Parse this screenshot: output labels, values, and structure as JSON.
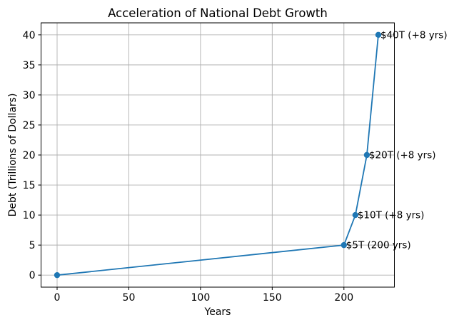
{
  "chart_data": {
    "type": "line",
    "title": "Acceleration of National Debt Growth",
    "xlabel": "Years",
    "ylabel": "Debt (Trillions of Dollars)",
    "x": [
      0,
      200,
      208,
      216,
      224
    ],
    "y": [
      0,
      5,
      10,
      20,
      40
    ],
    "annotations": [
      {
        "x": 200,
        "y": 5,
        "text": "$5T (200 yrs)"
      },
      {
        "x": 208,
        "y": 10,
        "text": "$10T (+8 yrs)"
      },
      {
        "x": 216,
        "y": 20,
        "text": "$20T (+8 yrs)"
      },
      {
        "x": 224,
        "y": 40,
        "text": "$40T (+8 yrs)"
      }
    ],
    "x_ticks": [
      0,
      50,
      100,
      150,
      200
    ],
    "y_ticks": [
      0,
      5,
      10,
      15,
      20,
      25,
      30,
      35,
      40
    ],
    "xlim": [
      -11.2,
      235.2
    ],
    "ylim": [
      -2.0,
      42.0
    ],
    "grid": true,
    "legend": "none",
    "line_color": "#1f77b4",
    "marker_color": "#1f77b4",
    "grid_color": "#b0b0b0",
    "spine_color": "#000000",
    "text_color": "#000000",
    "background": "#ffffff"
  }
}
